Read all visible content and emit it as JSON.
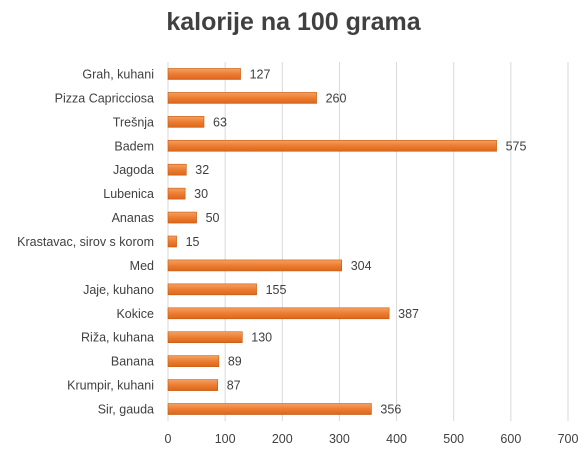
{
  "chart_data": {
    "type": "bar",
    "orientation": "horizontal",
    "title": "kalorije na 100 grama",
    "categories": [
      "Grah, kuhani",
      "Pizza Capricciosa",
      "Trešnja",
      "Badem",
      "Jagoda",
      "Lubenica",
      "Ananas",
      "Krastavac, sirov s korom",
      "Med",
      "Jaje, kuhano",
      "Kokice",
      "Riža, kuhana",
      "Banana",
      "Krumpir, kuhani",
      "Sir, gauda"
    ],
    "values": [
      127,
      260,
      63,
      575,
      32,
      30,
      50,
      15,
      304,
      155,
      387,
      130,
      89,
      87,
      356
    ],
    "xlim": [
      0,
      700
    ],
    "xticks": [
      "0",
      "100",
      "200",
      "300",
      "400",
      "500",
      "600",
      "700"
    ],
    "grid": true,
    "data_labels": true,
    "bar_color": "#ED7D31",
    "xlabel": "",
    "ylabel": ""
  }
}
